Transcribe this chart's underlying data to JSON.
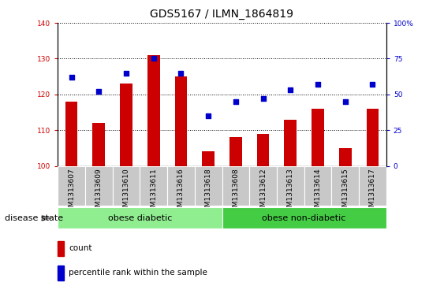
{
  "title": "GDS5167 / ILMN_1864819",
  "samples": [
    "GSM1313607",
    "GSM1313609",
    "GSM1313610",
    "GSM1313611",
    "GSM1313616",
    "GSM1313618",
    "GSM1313608",
    "GSM1313612",
    "GSM1313613",
    "GSM1313614",
    "GSM1313615",
    "GSM1313617"
  ],
  "counts": [
    118,
    112,
    123,
    131,
    125,
    104,
    108,
    109,
    113,
    116,
    105,
    116
  ],
  "percentiles": [
    62,
    52,
    65,
    75,
    65,
    35,
    45,
    47,
    53,
    57,
    45,
    57
  ],
  "bar_color": "#cc0000",
  "dot_color": "#0000cc",
  "ylim_left": [
    100,
    140
  ],
  "ylim_right": [
    0,
    100
  ],
  "yticks_left": [
    100,
    110,
    120,
    130,
    140
  ],
  "yticks_right": [
    0,
    25,
    50,
    75,
    100
  ],
  "groups": [
    {
      "label": "obese diabetic",
      "start": 0,
      "end": 6,
      "color": "#90ee90"
    },
    {
      "label": "obese non-diabetic",
      "start": 6,
      "end": 12,
      "color": "#44cc44"
    }
  ],
  "xtick_bg": "#c8c8c8",
  "disease_state_label": "disease state",
  "legend_count_label": "count",
  "legend_percentile_label": "percentile rank within the sample",
  "title_fontsize": 10,
  "tick_fontsize": 6.5,
  "label_fontsize": 8,
  "legend_fontsize": 7.5
}
